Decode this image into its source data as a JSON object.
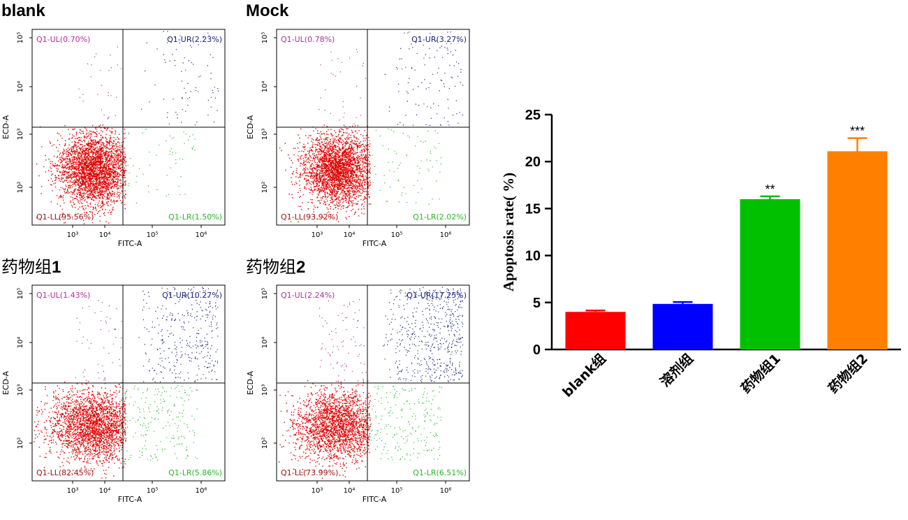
{
  "flow_panels": [
    {
      "id": "blank",
      "title": "blank",
      "title_suffix": "",
      "xlabel": "FITC-A",
      "ylabel": "ECD-A",
      "quadrants": {
        "UL": "Q1-UL(0.70%)",
        "UR": "Q1-UR(2.23%)",
        "LL": "Q1-LL(95.56%)",
        "LR": "Q1-LR(1.50%)"
      },
      "pct": {
        "UL": 0.7,
        "UR": 2.23,
        "LL": 95.56,
        "LR": 1.5
      }
    },
    {
      "id": "mock",
      "title": "Mock",
      "title_suffix": "",
      "xlabel": "FITC-A",
      "ylabel": "ECD-A",
      "quadrants": {
        "UL": "Q1-UL(0.78%)",
        "UR": "Q1-UR(3.27%)",
        "LL": "Q1-LL(93.92%)",
        "LR": "Q1-LR(2.02%)"
      },
      "pct": {
        "UL": 0.78,
        "UR": 3.27,
        "LL": 93.92,
        "LR": 2.02
      }
    },
    {
      "id": "drug1",
      "title": "药物组",
      "title_suffix": "1",
      "xlabel": "FITC-A",
      "ylabel": "ECD-A",
      "quadrants": {
        "UL": "Q1-UL(1.43%)",
        "UR": "Q1-UR(10.27%)",
        "LL": "Q1-LL(82.45%)",
        "LR": "Q1-LR(5.86%)"
      },
      "pct": {
        "UL": 1.43,
        "UR": 10.27,
        "LL": 82.45,
        "LR": 5.86
      }
    },
    {
      "id": "drug2",
      "title": "药物组",
      "title_suffix": "2",
      "xlabel": "FITC-A",
      "ylabel": "ECD-A",
      "quadrants": {
        "UL": "Q1-UL(2.24%)",
        "UR": "Q1-UR(17.25%)",
        "LL": "Q1-LL(73.99%)",
        "LR": "Q1-LR(6.51%)"
      },
      "pct": {
        "UL": 2.24,
        "UR": 17.25,
        "LL": 73.99,
        "LR": 6.51
      }
    }
  ],
  "flow_axis": {
    "x_ticks": [
      "10³",
      "10⁴",
      "10⁵",
      "10⁶"
    ],
    "y_ticks": [
      "10²",
      "10³",
      "10⁴",
      "10⁵"
    ]
  },
  "colors": {
    "LL": "#e00000",
    "LL_label": "#a01010",
    "UL": "#b0309a",
    "UR": "#1a237e",
    "LR": "#22bb22",
    "quad_line": "#000000"
  },
  "chart_data": {
    "type": "bar",
    "categories": [
      "blank组",
      "溶剂组",
      "药物组1",
      "药物组2"
    ],
    "values": [
      4.0,
      4.85,
      16.0,
      21.1
    ],
    "errors": [
      0.15,
      0.2,
      0.3,
      1.4
    ],
    "significance": [
      "",
      "",
      "**",
      "***"
    ],
    "colors": [
      "#ff0000",
      "#0000ff",
      "#00c000",
      "#ff8000"
    ],
    "ylabel": "Apoptosis rate( %)",
    "ylim": [
      0,
      25
    ],
    "yticks": [
      0,
      5,
      10,
      15,
      20,
      25
    ]
  }
}
